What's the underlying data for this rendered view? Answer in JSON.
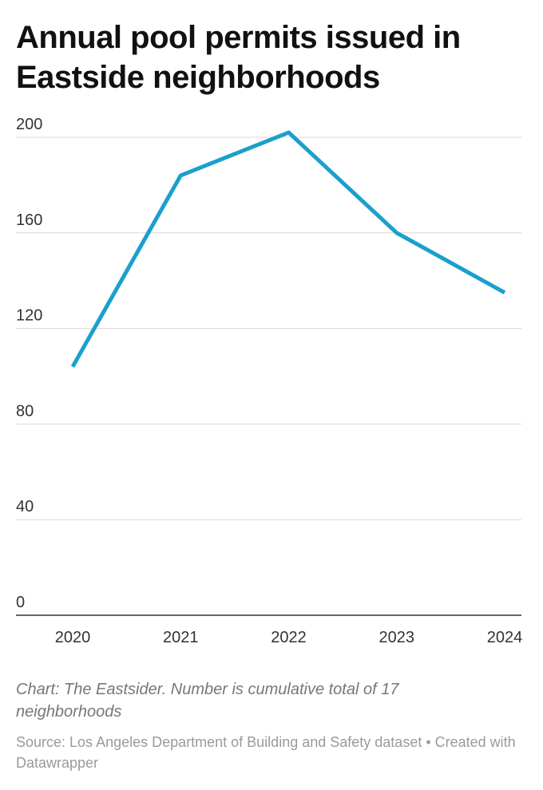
{
  "chart_data": {
    "type": "line",
    "title": "Annual pool permits issued in Eastside neighborhoods",
    "categories": [
      "2020",
      "2021",
      "2022",
      "2023",
      "2024"
    ],
    "series": [
      {
        "name": "Pool permits",
        "color": "#1c9fcd",
        "values": [
          104,
          184,
          202,
          160,
          135
        ]
      }
    ],
    "ylim": [
      0,
      200
    ],
    "yticks": [
      0,
      40,
      80,
      120,
      160,
      200
    ],
    "grid": true,
    "note": "Chart: The Eastsider. Number is cumulative total of 17 neighborhoods",
    "source": "Source: Los Angeles Department of Building and Safety dataset • Created with Datawrapper"
  }
}
